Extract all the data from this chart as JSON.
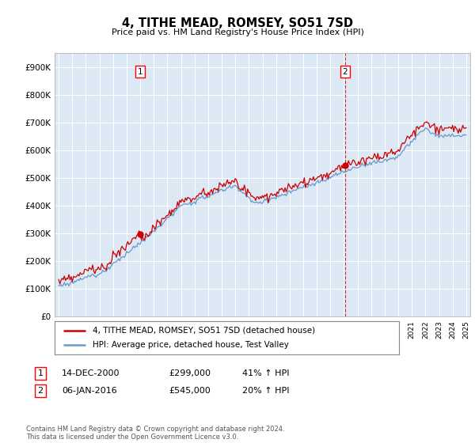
{
  "title": "4, TITHE MEAD, ROMSEY, SO51 7SD",
  "subtitle": "Price paid vs. HM Land Registry's House Price Index (HPI)",
  "ylabel_ticks": [
    "£0",
    "£100K",
    "£200K",
    "£300K",
    "£400K",
    "£500K",
    "£600K",
    "£700K",
    "£800K",
    "£900K"
  ],
  "ytick_values": [
    0,
    100000,
    200000,
    300000,
    400000,
    500000,
    600000,
    700000,
    800000,
    900000
  ],
  "ylim": [
    0,
    950000
  ],
  "hpi_color": "#6699cc",
  "hpi_fill_color": "#dde8f5",
  "price_color": "#cc0000",
  "vline_color": "#cc0000",
  "legend_label1": "4, TITHE MEAD, ROMSEY, SO51 7SD (detached house)",
  "legend_label2": "HPI: Average price, detached house, Test Valley",
  "table_row1": [
    "1",
    "14-DEC-2000",
    "£299,000",
    "41% ↑ HPI"
  ],
  "table_row2": [
    "2",
    "06-JAN-2016",
    "£545,000",
    "20% ↑ HPI"
  ],
  "footnote": "Contains HM Land Registry data © Crown copyright and database right 2024.\nThis data is licensed under the Open Government Licence v3.0.",
  "background_color": "#ffffff"
}
